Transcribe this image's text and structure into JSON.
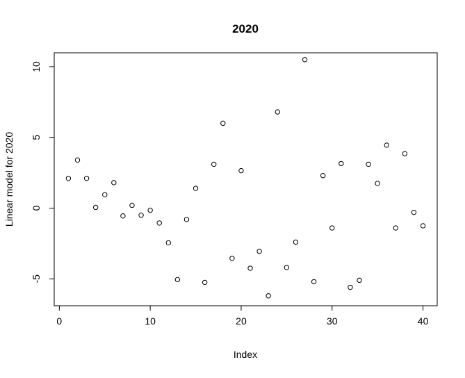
{
  "chart_data": {
    "type": "scatter",
    "title": "2020",
    "xlabel": "Index",
    "ylabel": "Linear model for 2020",
    "xlim": [
      -0.56,
      41.56
    ],
    "ylim": [
      -6.9,
      10.98
    ],
    "x_ticks": [
      0,
      10,
      20,
      30,
      40
    ],
    "y_ticks": [
      -5,
      0,
      5,
      10
    ],
    "grid": false,
    "legend": "none",
    "marker": "open-circle",
    "series": [
      {
        "x": [
          1,
          2,
          3,
          4,
          5,
          6,
          7,
          8,
          9,
          10,
          11,
          12,
          13,
          14,
          15,
          16,
          17,
          18,
          19,
          20,
          21,
          22,
          23,
          24,
          25,
          26,
          27,
          28,
          29,
          30,
          31,
          32,
          33,
          34,
          35,
          36,
          37,
          38,
          39,
          40
        ],
        "values": [
          2.1,
          3.4,
          2.1,
          0.05,
          0.95,
          1.8,
          -0.55,
          0.2,
          -0.5,
          -0.15,
          -1.05,
          -2.45,
          -5.05,
          -0.8,
          1.4,
          -5.25,
          3.1,
          6.0,
          -3.55,
          2.65,
          -4.25,
          -3.05,
          -6.2,
          6.8,
          -4.2,
          -2.4,
          10.5,
          -5.2,
          2.3,
          -1.4,
          3.15,
          -5.6,
          -5.1,
          3.1,
          1.75,
          4.45,
          -1.4,
          3.85,
          -0.3,
          -1.25
        ]
      }
    ]
  }
}
